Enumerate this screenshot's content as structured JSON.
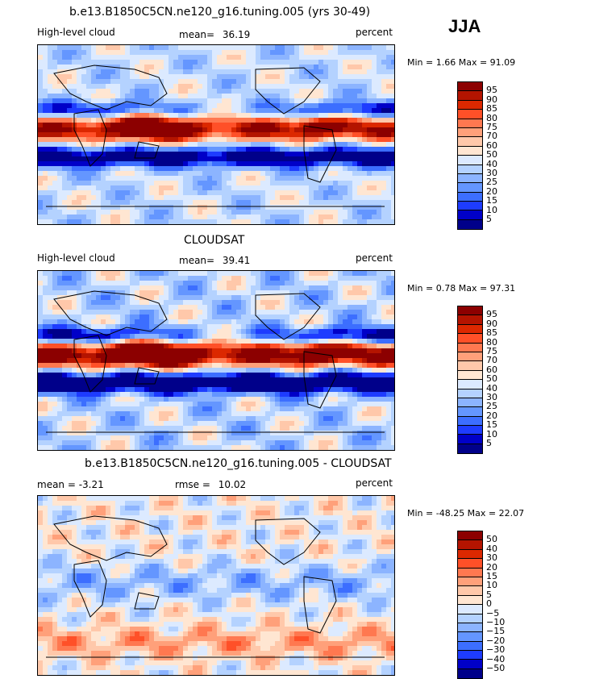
{
  "season": "JJA",
  "colors": {
    "levels": [
      "#00008a",
      "#0000c8",
      "#1e3cff",
      "#3c6eff",
      "#6496ff",
      "#8cb4ff",
      "#b4d2ff",
      "#dceaff",
      "#ffe6d2",
      "#ffc8aa",
      "#ffa07a",
      "#ff7850",
      "#ff5028",
      "#dc2800",
      "#b41400",
      "#8c0000"
    ]
  },
  "panels": [
    {
      "title": "b.e13.B1850C5CN.ne120_g16.tuning.005 (yrs 30-49)",
      "left_label": "High-level cloud",
      "mean_label": "mean=",
      "mean_value": "36.19",
      "units": "percent",
      "minmax": "Min =    1.66 Max =   91.09",
      "colorbar_labels": [
        "95",
        "90",
        "85",
        "80",
        "75",
        "70",
        "60",
        "50",
        "40",
        "30",
        "25",
        "20",
        "15",
        "10",
        "5"
      ],
      "intensity": 0.55
    },
    {
      "title": "CLOUDSAT",
      "left_label": "High-level cloud",
      "mean_label": "mean=",
      "mean_value": "39.41",
      "units": "percent",
      "minmax": "Min =    0.78 Max =   97.31",
      "colorbar_labels": [
        "95",
        "90",
        "85",
        "80",
        "75",
        "70",
        "60",
        "50",
        "40",
        "30",
        "25",
        "20",
        "15",
        "10",
        "5"
      ],
      "intensity": 0.85
    },
    {
      "title": "b.e13.B1850C5CN.ne120_g16.tuning.005 - CLOUDSAT",
      "left_label": "mean =    -3.21",
      "mean_label": "rmse =",
      "mean_value": "10.02",
      "units": "percent",
      "minmax": "Min = -48.25 Max =   22.07",
      "colorbar_labels": [
        "50",
        "40",
        "30",
        "20",
        "15",
        "10",
        "5",
        "0",
        "−5",
        "−10",
        "−15",
        "−20",
        "−30",
        "−40",
        "−50"
      ],
      "intensity": 0.35
    }
  ]
}
